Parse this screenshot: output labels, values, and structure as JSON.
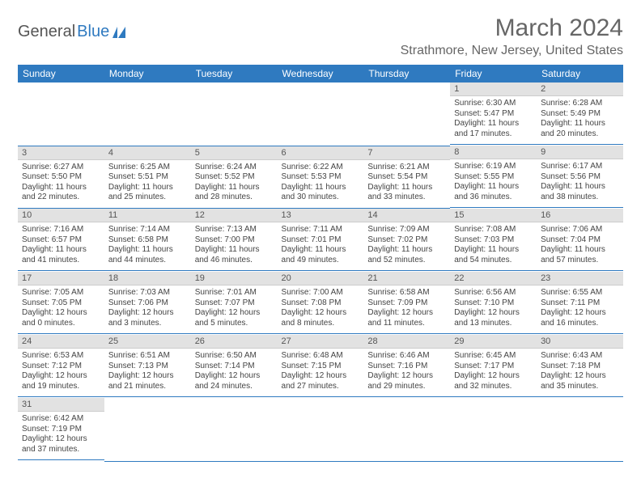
{
  "logo": {
    "text1": "General",
    "text2": "Blue"
  },
  "title": "March 2024",
  "location": "Strathmore, New Jersey, United States",
  "dayHeaders": [
    "Sunday",
    "Monday",
    "Tuesday",
    "Wednesday",
    "Thursday",
    "Friday",
    "Saturday"
  ],
  "colors": {
    "header_bg": "#2f7ac0",
    "daynum_bg": "#e2e2e2",
    "rule": "#2f7ac0"
  },
  "weeks": [
    [
      null,
      null,
      null,
      null,
      null,
      {
        "n": "1",
        "sr": "Sunrise: 6:30 AM",
        "ss": "Sunset: 5:47 PM",
        "d1": "Daylight: 11 hours",
        "d2": "and 17 minutes."
      },
      {
        "n": "2",
        "sr": "Sunrise: 6:28 AM",
        "ss": "Sunset: 5:49 PM",
        "d1": "Daylight: 11 hours",
        "d2": "and 20 minutes."
      }
    ],
    [
      {
        "n": "3",
        "sr": "Sunrise: 6:27 AM",
        "ss": "Sunset: 5:50 PM",
        "d1": "Daylight: 11 hours",
        "d2": "and 22 minutes."
      },
      {
        "n": "4",
        "sr": "Sunrise: 6:25 AM",
        "ss": "Sunset: 5:51 PM",
        "d1": "Daylight: 11 hours",
        "d2": "and 25 minutes."
      },
      {
        "n": "5",
        "sr": "Sunrise: 6:24 AM",
        "ss": "Sunset: 5:52 PM",
        "d1": "Daylight: 11 hours",
        "d2": "and 28 minutes."
      },
      {
        "n": "6",
        "sr": "Sunrise: 6:22 AM",
        "ss": "Sunset: 5:53 PM",
        "d1": "Daylight: 11 hours",
        "d2": "and 30 minutes."
      },
      {
        "n": "7",
        "sr": "Sunrise: 6:21 AM",
        "ss": "Sunset: 5:54 PM",
        "d1": "Daylight: 11 hours",
        "d2": "and 33 minutes."
      },
      {
        "n": "8",
        "sr": "Sunrise: 6:19 AM",
        "ss": "Sunset: 5:55 PM",
        "d1": "Daylight: 11 hours",
        "d2": "and 36 minutes."
      },
      {
        "n": "9",
        "sr": "Sunrise: 6:17 AM",
        "ss": "Sunset: 5:56 PM",
        "d1": "Daylight: 11 hours",
        "d2": "and 38 minutes."
      }
    ],
    [
      {
        "n": "10",
        "sr": "Sunrise: 7:16 AM",
        "ss": "Sunset: 6:57 PM",
        "d1": "Daylight: 11 hours",
        "d2": "and 41 minutes."
      },
      {
        "n": "11",
        "sr": "Sunrise: 7:14 AM",
        "ss": "Sunset: 6:58 PM",
        "d1": "Daylight: 11 hours",
        "d2": "and 44 minutes."
      },
      {
        "n": "12",
        "sr": "Sunrise: 7:13 AM",
        "ss": "Sunset: 7:00 PM",
        "d1": "Daylight: 11 hours",
        "d2": "and 46 minutes."
      },
      {
        "n": "13",
        "sr": "Sunrise: 7:11 AM",
        "ss": "Sunset: 7:01 PM",
        "d1": "Daylight: 11 hours",
        "d2": "and 49 minutes."
      },
      {
        "n": "14",
        "sr": "Sunrise: 7:09 AM",
        "ss": "Sunset: 7:02 PM",
        "d1": "Daylight: 11 hours",
        "d2": "and 52 minutes."
      },
      {
        "n": "15",
        "sr": "Sunrise: 7:08 AM",
        "ss": "Sunset: 7:03 PM",
        "d1": "Daylight: 11 hours",
        "d2": "and 54 minutes."
      },
      {
        "n": "16",
        "sr": "Sunrise: 7:06 AM",
        "ss": "Sunset: 7:04 PM",
        "d1": "Daylight: 11 hours",
        "d2": "and 57 minutes."
      }
    ],
    [
      {
        "n": "17",
        "sr": "Sunrise: 7:05 AM",
        "ss": "Sunset: 7:05 PM",
        "d1": "Daylight: 12 hours",
        "d2": "and 0 minutes."
      },
      {
        "n": "18",
        "sr": "Sunrise: 7:03 AM",
        "ss": "Sunset: 7:06 PM",
        "d1": "Daylight: 12 hours",
        "d2": "and 3 minutes."
      },
      {
        "n": "19",
        "sr": "Sunrise: 7:01 AM",
        "ss": "Sunset: 7:07 PM",
        "d1": "Daylight: 12 hours",
        "d2": "and 5 minutes."
      },
      {
        "n": "20",
        "sr": "Sunrise: 7:00 AM",
        "ss": "Sunset: 7:08 PM",
        "d1": "Daylight: 12 hours",
        "d2": "and 8 minutes."
      },
      {
        "n": "21",
        "sr": "Sunrise: 6:58 AM",
        "ss": "Sunset: 7:09 PM",
        "d1": "Daylight: 12 hours",
        "d2": "and 11 minutes."
      },
      {
        "n": "22",
        "sr": "Sunrise: 6:56 AM",
        "ss": "Sunset: 7:10 PM",
        "d1": "Daylight: 12 hours",
        "d2": "and 13 minutes."
      },
      {
        "n": "23",
        "sr": "Sunrise: 6:55 AM",
        "ss": "Sunset: 7:11 PM",
        "d1": "Daylight: 12 hours",
        "d2": "and 16 minutes."
      }
    ],
    [
      {
        "n": "24",
        "sr": "Sunrise: 6:53 AM",
        "ss": "Sunset: 7:12 PM",
        "d1": "Daylight: 12 hours",
        "d2": "and 19 minutes."
      },
      {
        "n": "25",
        "sr": "Sunrise: 6:51 AM",
        "ss": "Sunset: 7:13 PM",
        "d1": "Daylight: 12 hours",
        "d2": "and 21 minutes."
      },
      {
        "n": "26",
        "sr": "Sunrise: 6:50 AM",
        "ss": "Sunset: 7:14 PM",
        "d1": "Daylight: 12 hours",
        "d2": "and 24 minutes."
      },
      {
        "n": "27",
        "sr": "Sunrise: 6:48 AM",
        "ss": "Sunset: 7:15 PM",
        "d1": "Daylight: 12 hours",
        "d2": "and 27 minutes."
      },
      {
        "n": "28",
        "sr": "Sunrise: 6:46 AM",
        "ss": "Sunset: 7:16 PM",
        "d1": "Daylight: 12 hours",
        "d2": "and 29 minutes."
      },
      {
        "n": "29",
        "sr": "Sunrise: 6:45 AM",
        "ss": "Sunset: 7:17 PM",
        "d1": "Daylight: 12 hours",
        "d2": "and 32 minutes."
      },
      {
        "n": "30",
        "sr": "Sunrise: 6:43 AM",
        "ss": "Sunset: 7:18 PM",
        "d1": "Daylight: 12 hours",
        "d2": "and 35 minutes."
      }
    ],
    [
      {
        "n": "31",
        "sr": "Sunrise: 6:42 AM",
        "ss": "Sunset: 7:19 PM",
        "d1": "Daylight: 12 hours",
        "d2": "and 37 minutes."
      },
      null,
      null,
      null,
      null,
      null,
      null
    ]
  ]
}
